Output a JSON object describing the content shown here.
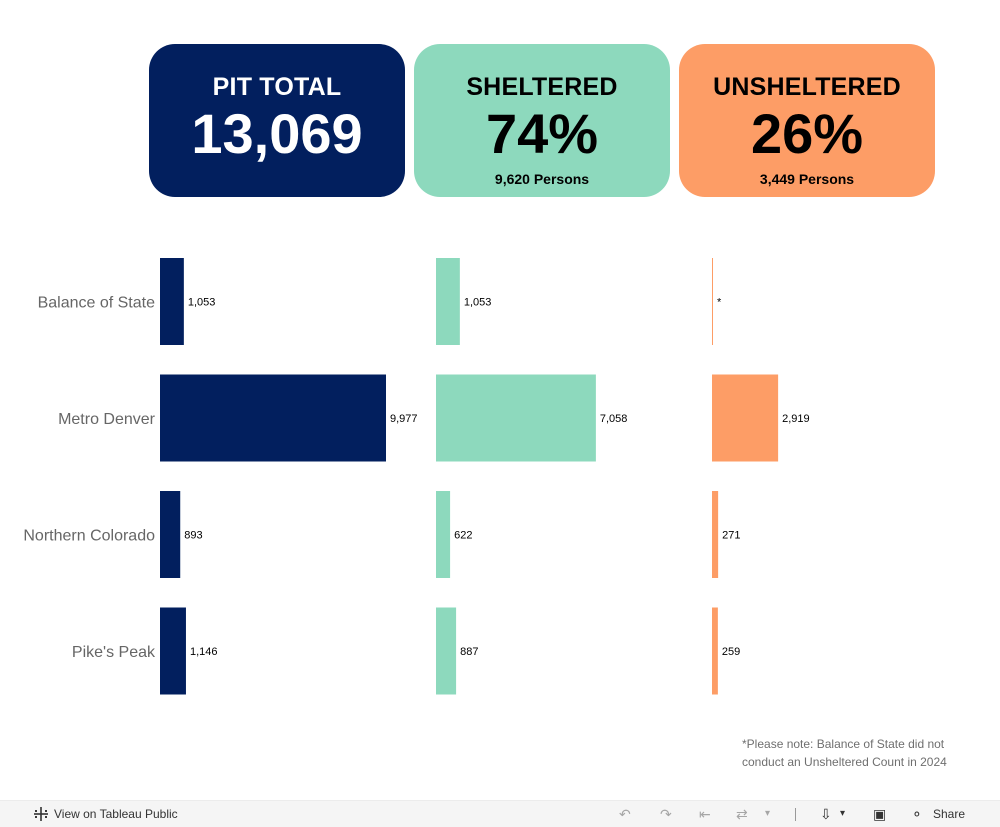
{
  "kpis": {
    "total": {
      "title": "PIT TOTAL",
      "value": "13,069"
    },
    "sheltered": {
      "title": "SHELTERED",
      "value": "74%",
      "sub": "9,620 Persons"
    },
    "unsheltered": {
      "title": "UNSHELTERED",
      "value": "26%",
      "sub": "3,449 Persons"
    }
  },
  "chart_data": {
    "type": "bar",
    "orientation": "horizontal",
    "categories": [
      "Balance of State",
      "Metro Denver",
      "Northern Colorado",
      "Pike's Peak"
    ],
    "series": [
      {
        "name": "PIT Total",
        "color": "#021f5e",
        "values": [
          1053,
          9977,
          893,
          1146
        ],
        "labels": [
          "1,053",
          "9,977",
          "893",
          "1,146"
        ]
      },
      {
        "name": "Sheltered",
        "color": "#8dd9bd",
        "values": [
          1053,
          7058,
          622,
          887
        ],
        "labels": [
          "1,053",
          "7,058",
          "622",
          "887"
        ]
      },
      {
        "name": "Unsheltered",
        "color": "#fd9d66",
        "values": [
          0,
          2919,
          271,
          259
        ],
        "labels": [
          "*",
          "2,919",
          "271",
          "259"
        ]
      }
    ]
  },
  "note": "*Please note: Balance of State did not conduct an Unsheltered Count in 2024",
  "toolbar": {
    "view_label": "View on Tableau Public",
    "share_label": "Share"
  }
}
